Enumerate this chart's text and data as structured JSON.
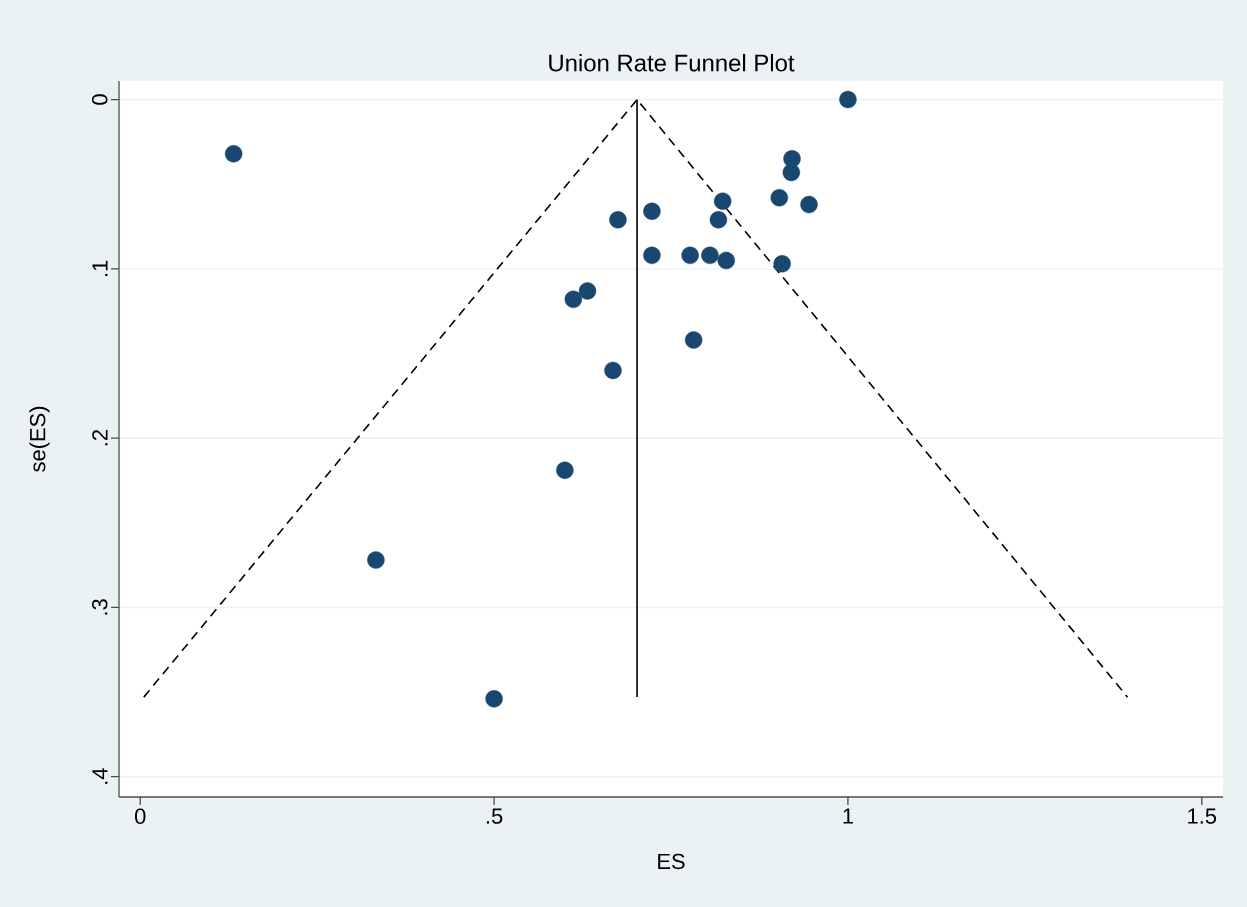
{
  "chart_data": {
    "type": "scatter",
    "title": "Union Rate Funnel Plot",
    "xlabel": "ES",
    "ylabel": "se(ES)",
    "xlim": [
      -0.03,
      1.53
    ],
    "ylim": [
      0.412,
      -0.011
    ],
    "xticks": [
      0,
      {
        "value": 0.5,
        "label": ".5"
      },
      1,
      1.5
    ],
    "yticks": [
      0,
      {
        "value": 0.1,
        "label": ".1"
      },
      {
        "value": 0.2,
        "label": ".2"
      },
      {
        "value": 0.3,
        "label": ".3"
      },
      {
        "value": 0.4,
        "label": ".4"
      }
    ],
    "grid": "y",
    "series": [
      {
        "marker": "circle",
        "color": "#1a476f",
        "x": [
          1.0,
          0.921,
          0.92,
          0.903,
          0.945,
          0.823,
          0.817,
          0.723,
          0.675,
          0.723,
          0.777,
          0.805,
          0.828,
          0.907,
          0.632,
          0.612,
          0.782,
          0.668,
          0.132,
          0.6,
          0.333,
          0.5
        ],
        "values": [
          0.0,
          0.035,
          0.043,
          0.058,
          0.062,
          0.06,
          0.071,
          0.066,
          0.071,
          0.092,
          0.092,
          0.092,
          0.095,
          0.097,
          0.113,
          0.118,
          0.142,
          0.16,
          0.032,
          0.219,
          0.272,
          0.354
        ]
      },
      {
        "type": "line",
        "color": "#000000",
        "line_style": "dashed",
        "x": [
          0.005,
          0.702,
          1.395
        ],
        "values": [
          0.353,
          0.0,
          0.353
        ]
      },
      {
        "type": "line",
        "color": "#000000",
        "line_style": "solid",
        "x": [
          0.702,
          0.702
        ],
        "values": [
          0.0,
          0.353
        ]
      }
    ]
  }
}
